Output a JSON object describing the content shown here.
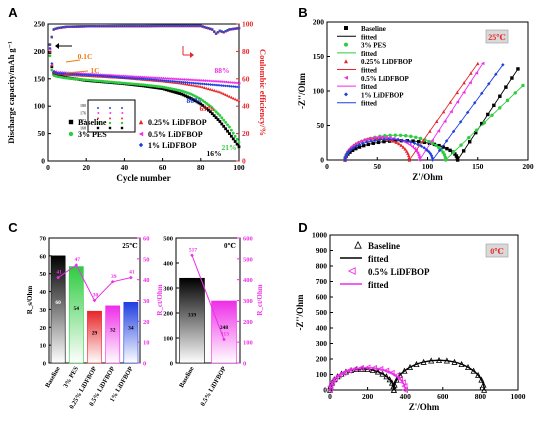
{
  "chart_data": [
    {
      "panel": "A",
      "type": "scatter",
      "xlabel": "Cycle number",
      "ylabel": "Discharge capacity/mAh g⁻¹",
      "ylabel_right": "Coulombic efficiency/%",
      "xlim": [
        0,
        100
      ],
      "ylim": [
        0,
        250
      ],
      "ylim_right": [
        0,
        100
      ],
      "xticks": [
        "0",
        "20",
        "40",
        "60",
        "80",
        "100"
      ],
      "yticks": [
        "0",
        "50",
        "100",
        "150",
        "200",
        "250"
      ],
      "yticks_right": [
        "0",
        "20",
        "40",
        "60",
        "80",
        "100"
      ],
      "annotations": [
        "0.1C",
        "1C",
        "88%",
        "86%",
        "69%",
        "21%",
        "16%"
      ],
      "legend": [
        "Baseline",
        "3% PES",
        "0.25% LiDFBOP",
        "0.5% LiDFBOP",
        "1% LiDFBOP"
      ],
      "series": [
        {
          "name": "Baseline",
          "color": "#000000",
          "marker": "square",
          "x": [
            1,
            2,
            3,
            5,
            10,
            20,
            30,
            40,
            50,
            60,
            70,
            75,
            80,
            85,
            90,
            95,
            100
          ],
          "values": [
            198,
            172,
            160,
            156,
            152,
            147,
            144,
            141,
            137,
            132,
            122,
            114,
            104,
            90,
            72,
            50,
            26
          ]
        },
        {
          "name": "3% PES",
          "color": "#2ecc40",
          "marker": "circle",
          "x": [
            1,
            2,
            3,
            5,
            10,
            20,
            30,
            40,
            50,
            60,
            70,
            75,
            80,
            85,
            90,
            95,
            100
          ],
          "values": [
            192,
            166,
            156,
            154,
            151,
            148,
            145,
            142,
            139,
            135,
            128,
            122,
            113,
            100,
            83,
            62,
            34
          ]
        },
        {
          "name": "0.25% LiDFBOP",
          "color": "#e8262a",
          "marker": "triangle",
          "x": [
            1,
            2,
            3,
            5,
            10,
            20,
            30,
            40,
            50,
            60,
            70,
            80,
            90,
            95,
            100
          ],
          "values": [
            200,
            175,
            162,
            160,
            158,
            156,
            154,
            152,
            149,
            146,
            142,
            136,
            126,
            118,
            110
          ]
        },
        {
          "name": "0.5% LiDFBOP",
          "color": "#ee2ee8",
          "marker": "triangle-left",
          "x": [
            1,
            2,
            3,
            5,
            10,
            20,
            30,
            40,
            50,
            60,
            70,
            80,
            90,
            100
          ],
          "values": [
            204,
            177,
            164,
            162,
            161,
            159,
            157,
            155,
            153,
            151,
            149,
            147,
            145,
            142
          ]
        },
        {
          "name": "1% LiDFBOP",
          "color": "#1f3fe0",
          "marker": "diamond",
          "x": [
            1,
            2,
            3,
            5,
            10,
            20,
            30,
            40,
            50,
            60,
            70,
            80,
            90,
            100
          ],
          "values": [
            206,
            178,
            163,
            160,
            159,
            157,
            155,
            152,
            150,
            147,
            144,
            141,
            138,
            135
          ]
        }
      ],
      "efficiency_series": {
        "x": [
          1,
          3,
          5,
          10,
          20,
          30,
          40,
          50,
          60,
          70,
          80,
          86,
          88,
          90,
          92,
          95,
          100
        ],
        "values": [
          85,
          96,
          97,
          98,
          98.3,
          98.4,
          98.5,
          98.5,
          98.6,
          98.6,
          98.6,
          96,
          93,
          95,
          94,
          96,
          97
        ]
      }
    },
    {
      "panel": "B",
      "type": "scatter",
      "title_badge": "25℃",
      "xlabel": "Z'/Ohm",
      "ylabel": "-Z''/Ohm",
      "xlim": [
        0,
        200
      ],
      "ylim": [
        0,
        200
      ],
      "xticks": [
        "0",
        "50",
        "100",
        "150",
        "200"
      ],
      "yticks": [
        "0",
        "50",
        "100",
        "150",
        "200"
      ],
      "legend": [
        "Baseline",
        "fitted",
        "3% PES",
        "fitted",
        "0.25% LiDFBOP",
        "fitted",
        "0.5% LiDFBOP",
        "fitted",
        "1% LiDFBOP",
        "fitted"
      ],
      "series": [
        {
          "name": "Baseline",
          "color": "#000000",
          "marker": "square",
          "semicircle": [
            18,
            130,
            28
          ],
          "tail_end": [
            190,
            132
          ]
        },
        {
          "name": "3% PES",
          "color": "#2ecc40",
          "marker": "circle",
          "semicircle": [
            18,
            118,
            36
          ],
          "tail_end": [
            195,
            108
          ]
        },
        {
          "name": "0.25% LiDFBOP",
          "color": "#e8262a",
          "marker": "triangle",
          "semicircle": [
            18,
            82,
            32
          ],
          "tail_end": [
            150,
            140
          ]
        },
        {
          "name": "0.5% LiDFBOP",
          "color": "#ee2ee8",
          "marker": "triangle-left",
          "semicircle": [
            18,
            92,
            33
          ],
          "tail_end": [
            155,
            140
          ]
        },
        {
          "name": "1% LiDFBOP",
          "color": "#1f3fe0",
          "marker": "diamond",
          "semicircle": [
            18,
            105,
            30
          ],
          "tail_end": [
            175,
            138
          ]
        }
      ]
    },
    {
      "panel": "C",
      "type": "bar",
      "sub": [
        {
          "badge": "25℃",
          "categories": [
            "Baseline",
            "3% PES",
            "0.25% LiDFBOP",
            "0.5% LiDFBOP",
            "1% LiDFBOP"
          ],
          "values": [
            60,
            54,
            29,
            32,
            34
          ],
          "bar_labels": [
            "60",
            "54",
            "29",
            "32",
            "34"
          ],
          "line_values": [
            41,
            47,
            30,
            39,
            41
          ],
          "line_labels": [
            "41",
            "47",
            "30",
            "39",
            "41"
          ],
          "ylim": [
            0,
            70
          ],
          "ylim_right": [
            0,
            60
          ],
          "yticks": [
            "0",
            "10",
            "20",
            "30",
            "40",
            "50",
            "60",
            "70"
          ],
          "yticks_right": [
            "0",
            "10",
            "20",
            "30",
            "40",
            "50",
            "60"
          ],
          "ylabel": "R_s/Ohm",
          "ylabel_right": "R_ct/Ohm",
          "colors": [
            "#000000",
            "#2ecc40",
            "#e8262a",
            "#ee2ee8",
            "#1f3fe0"
          ]
        },
        {
          "badge": "0℃",
          "categories": [
            "Baseline",
            "0.5% LiDFBOP"
          ],
          "values": [
            339,
            248
          ],
          "bar_labels": [
            "339",
            "248"
          ],
          "line_values": [
            517,
            113
          ],
          "line_labels": [
            "517",
            "113"
          ],
          "ylim": [
            0,
            500
          ],
          "ylim_right": [
            0,
            600
          ],
          "yticks": [
            "0",
            "100",
            "200",
            "300",
            "400",
            "500"
          ],
          "yticks_right": [
            "0",
            "100",
            "200",
            "300",
            "400",
            "500",
            "600"
          ],
          "ylabel_right": "R_ct/Ohm",
          "colors": [
            "#000000",
            "#ee2ee8"
          ]
        }
      ]
    },
    {
      "panel": "D",
      "type": "scatter",
      "title_badge": "0℃",
      "xlabel": "Z'/Ohm",
      "ylabel": "-Z''/Ohm",
      "xlim": [
        0,
        1000
      ],
      "ylim": [
        0,
        1000
      ],
      "xticks": [
        "0",
        "200",
        "400",
        "600",
        "800",
        "1000"
      ],
      "yticks": [
        "0",
        "100",
        "200",
        "300",
        "400",
        "500",
        "600",
        "700",
        "800",
        "900",
        "1000"
      ],
      "legend": [
        "Baseline",
        "fitted",
        "0.5% LiDFBOP",
        "fitted"
      ],
      "series": [
        {
          "name": "Baseline",
          "color": "#000000",
          "marker": "triangle-open",
          "arcs": [
            [
              0,
              340
            ],
            [
              340,
              820
            ]
          ]
        },
        {
          "name": "0.5% LiDFBOP",
          "color": "#ee2ee8",
          "marker": "triangle-left-open",
          "arcs": [
            [
              0,
              400
            ]
          ]
        }
      ]
    }
  ],
  "panels": {
    "a": "A",
    "b": "B",
    "c": "C",
    "d": "D"
  },
  "text": {
    "a_x": "Cycle number",
    "a_y": "Discharge capacity/mAh g⁻¹",
    "a_y2": "Coulombic efficiency/%",
    "a_c01": "0.1C",
    "a_c1": "1C",
    "a_88": "88%",
    "a_86": "86%",
    "a_69": "69%",
    "a_21": "21%",
    "a_16": "16%",
    "a_leg1": "Baseline",
    "a_leg2": "3% PES",
    "a_leg3": "0.25% LiDFBOP",
    "a_leg4": "0.5% LiDFBOP",
    "a_leg5": "1% LiDFBOP",
    "b_badge": "25℃",
    "b_x": "Z'/Ohm",
    "b_y": "-Z''/Ohm",
    "c_badge1": "25℃",
    "c_badge2": "0℃",
    "c_yl": "R_s/Ohm",
    "c_yr": "R_ct/Ohm",
    "d_badge": "0℃",
    "d_x": "Z'/Ohm",
    "d_y": "-Z''/Ohm",
    "d_leg1": "Baseline",
    "d_leg2": "fitted",
    "d_leg3": "0.5% LiDFBOP",
    "d_leg4": "fitted"
  }
}
